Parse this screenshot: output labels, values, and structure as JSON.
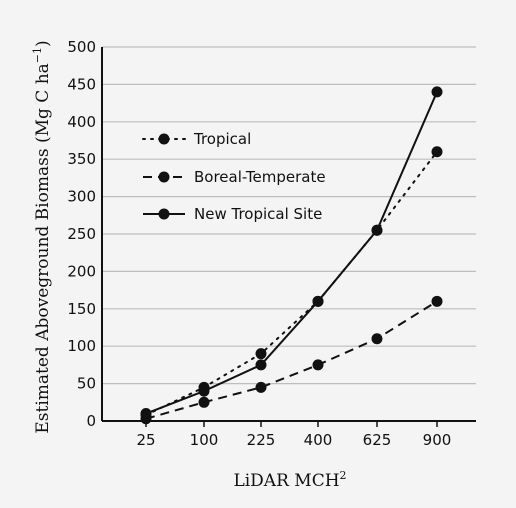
{
  "chart_data": {
    "type": "line",
    "title": "",
    "xlabel": "LiDAR MCH",
    "xlabel_superscript": "2",
    "ylabel": "Estimated Aboveground Biomass (Mg C ha",
    "ylabel_superscript": "−1",
    "ylabel_suffix": ")",
    "categories": [
      "25",
      "100",
      "225",
      "400",
      "625",
      "900"
    ],
    "x": [
      25,
      100,
      225,
      400,
      625,
      900
    ],
    "ylim": [
      0,
      500
    ],
    "yticks": [
      0,
      50,
      100,
      150,
      200,
      250,
      300,
      350,
      400,
      450,
      500
    ],
    "grid": "horizontal",
    "legend_position": "top-left",
    "series": [
      {
        "name": "Tropical",
        "line_style": "dotted",
        "values": [
          8,
          45,
          90,
          160,
          255,
          360
        ]
      },
      {
        "name": "Boreal-Temperate",
        "line_style": "dashed",
        "values": [
          3,
          25,
          45,
          75,
          110,
          160
        ]
      },
      {
        "name": "New Tropical Site",
        "line_style": "solid",
        "values": [
          10,
          40,
          75,
          160,
          255,
          440
        ]
      }
    ],
    "colors": {
      "background": "#f4f4f4",
      "grid": "#bdbdbd",
      "ink": "#111111"
    }
  }
}
